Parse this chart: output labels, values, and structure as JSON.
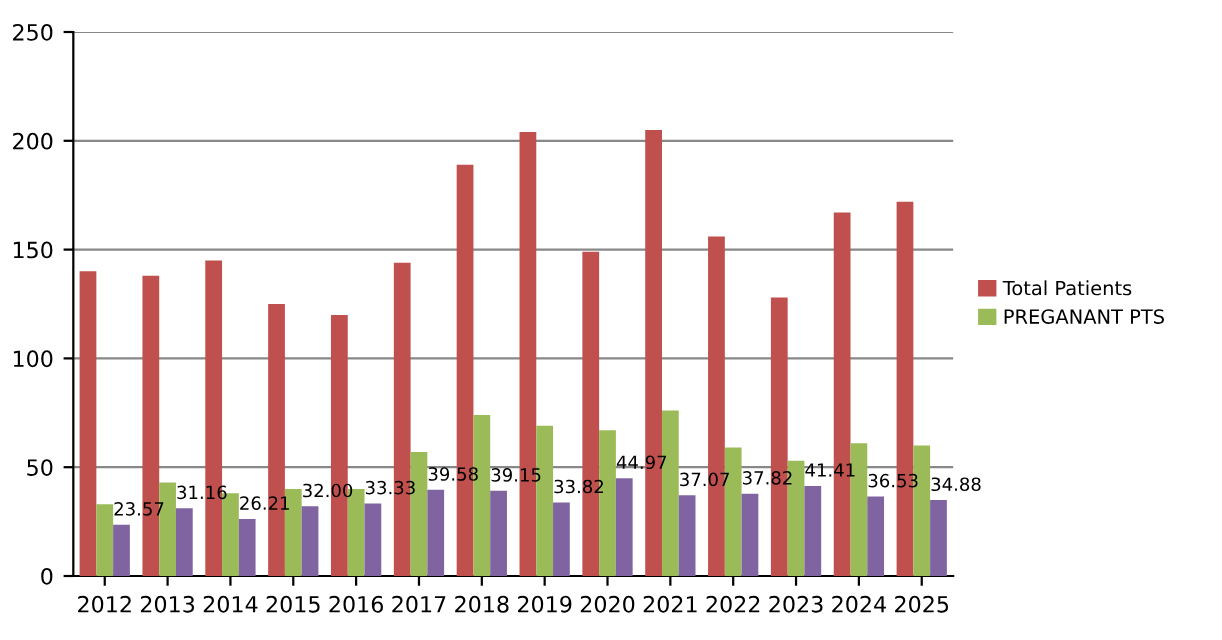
{
  "chart_data": {
    "type": "bar",
    "categories": [
      "2012",
      "2013",
      "2014",
      "2015",
      "2016",
      "2017",
      "2018",
      "2019",
      "2020",
      "2021",
      "2022",
      "2023",
      "2024",
      "2025"
    ],
    "series": [
      {
        "name": "Total Patients",
        "color": "#c0504d",
        "values": [
          140,
          138,
          145,
          125,
          120,
          144,
          189,
          204,
          149,
          205,
          156,
          128,
          167,
          172
        ]
      },
      {
        "name": "PREGANANT PTS",
        "color": "#9bbb59",
        "values": [
          33,
          43,
          38,
          40,
          40,
          57,
          74,
          69,
          67,
          76,
          59,
          53,
          61,
          60
        ]
      },
      {
        "color": "#8064a2",
        "values": [
          23.57,
          31.16,
          26.21,
          32.0,
          33.33,
          39.58,
          39.15,
          33.82,
          44.97,
          37.07,
          37.82,
          41.41,
          36.53,
          34.88
        ],
        "value_labels": [
          "23.57",
          "31.16",
          "26.21",
          "32.00",
          "33.33",
          "39.58",
          "39.15",
          "33.82",
          "44.97",
          "37.07",
          "37.82",
          "41.41",
          "36.53",
          "34.88"
        ]
      }
    ],
    "ylim": [
      0,
      250
    ],
    "yticks": [
      0,
      50,
      100,
      150,
      200,
      250
    ],
    "grid": "y",
    "legend": "right"
  }
}
